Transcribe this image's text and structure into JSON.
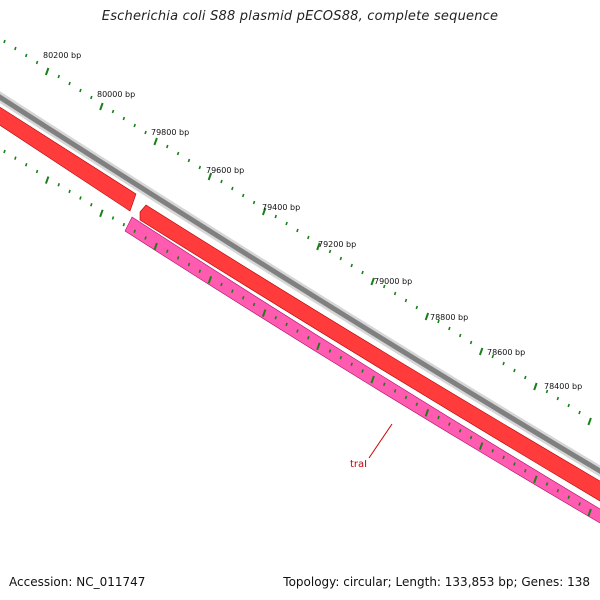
{
  "title": "Escherichia coli S88 plasmid pECOS88, complete sequence",
  "ruler": {
    "labels": [
      "80200 bp",
      "80000 bp",
      "79800 bp",
      "79600 bp",
      "79400 bp",
      "79200 bp",
      "79000 bp",
      "78800 bp",
      "78600 bp",
      "78400 bp"
    ],
    "tick_color": "#1a7f1a"
  },
  "gene": {
    "label": "traI",
    "label_color": "#cc0000"
  },
  "colors": {
    "backbone": "#808080",
    "forward_feature": "#ff0000",
    "reverse_feature": "#ff1493"
  },
  "footer": {
    "accession": "Accession: NC_011747",
    "summary": "Topology: circular; Length: 133,853 bp; Genes: 138"
  }
}
